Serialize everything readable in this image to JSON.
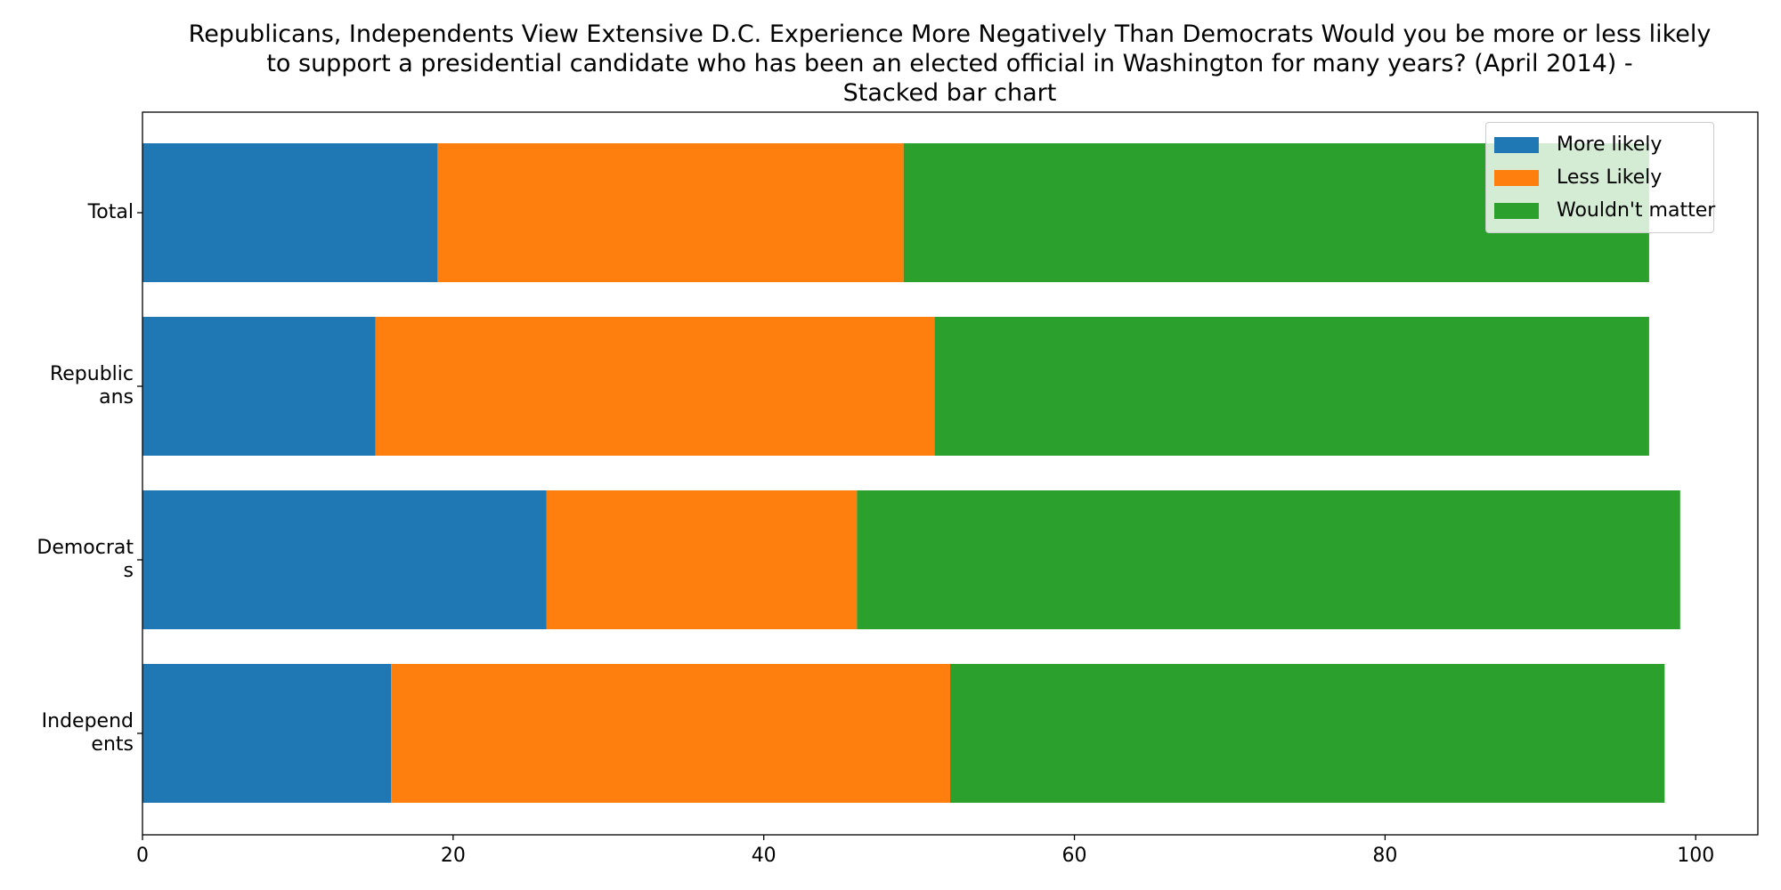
{
  "chart_data": {
    "type": "bar",
    "orientation": "horizontal",
    "stacked": true,
    "title_lines": [
      "Republicans, Independents View Extensive D.C. Experience More Negatively Than Democrats Would you be more or less likely",
      "to support a presidential candidate who has been an elected official in Washington for many years? (April 2014)  -",
      "Stacked bar chart"
    ],
    "categories": [
      "Total",
      "Republicans",
      "Democrats",
      "Independents"
    ],
    "category_label_lines": [
      [
        "Total"
      ],
      [
        "Republic",
        "ans"
      ],
      [
        "Democrat",
        "s"
      ],
      [
        "Independ",
        "ents"
      ]
    ],
    "series": [
      {
        "name": "More likely",
        "color": "#1f77b4",
        "values": [
          19,
          15,
          26,
          16
        ]
      },
      {
        "name": "Less Likely",
        "color": "#ff7f0e",
        "values": [
          30,
          36,
          20,
          36
        ]
      },
      {
        "name": "Wouldn't matter",
        "color": "#2ca02c",
        "values": [
          48,
          46,
          53,
          46
        ]
      }
    ],
    "xlim": [
      0,
      104
    ],
    "xticks": [
      0,
      20,
      40,
      60,
      80,
      100
    ],
    "xlabel": "",
    "ylabel": "",
    "grid": false,
    "legend_position": "top-right"
  }
}
